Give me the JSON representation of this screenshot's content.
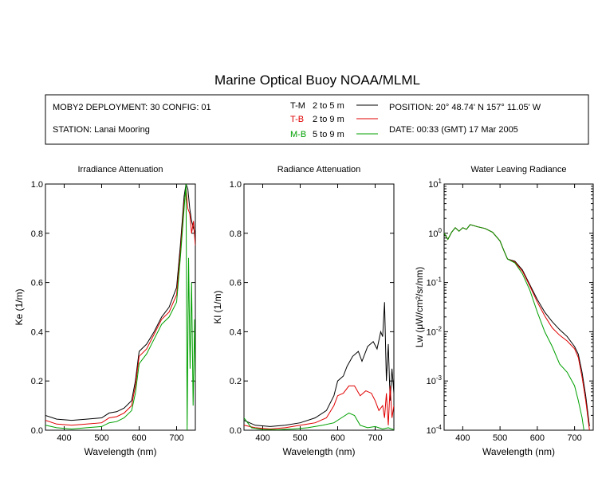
{
  "figure": {
    "title": "Marine Optical Buoy NOAA/MLML",
    "deployment": "MOBY2 DEPLOYMENT: 30 CONFIG: 01",
    "station": "STATION: Lanai Mooring",
    "position": "POSITION: 20° 48.74' N   157° 11.05' W",
    "date": "DATE: 00:33 (GMT) 17 Mar 2005",
    "legend": [
      {
        "code": "T-M",
        "range": "2 to 5  m",
        "color": "#000000"
      },
      {
        "code": "T-B",
        "range": "2 to 9  m",
        "color": "#e00000"
      },
      {
        "code": "M-B",
        "range": "5 to 9  m",
        "color": "#00a000"
      }
    ]
  },
  "chart_data": [
    {
      "type": "line",
      "title": "Irradiance Attenuation",
      "xlabel": "Wavelength (nm)",
      "ylabel": "Ke  (1/m)",
      "xlim": [
        350,
        750
      ],
      "ylim": [
        0,
        1
      ],
      "xticks": [
        400,
        500,
        600,
        700
      ],
      "xtick_labels": [
        "400",
        "500",
        "600",
        "700"
      ],
      "yticks": [
        0,
        0.2,
        0.4,
        0.6,
        0.8,
        1.0
      ],
      "ytick_labels": [
        "0.0",
        "0.2",
        "0.4",
        "0.6",
        "0.8",
        "1.0"
      ],
      "series": [
        {
          "name": "T-M",
          "color": "#000000",
          "points": [
            [
              350,
              0.06
            ],
            [
              380,
              0.045
            ],
            [
              420,
              0.04
            ],
            [
              460,
              0.045
            ],
            [
              500,
              0.05
            ],
            [
              520,
              0.07
            ],
            [
              540,
              0.075
            ],
            [
              560,
              0.09
            ],
            [
              580,
              0.12
            ],
            [
              590,
              0.2
            ],
            [
              600,
              0.32
            ],
            [
              620,
              0.35
            ],
            [
              640,
              0.4
            ],
            [
              660,
              0.46
            ],
            [
              680,
              0.5
            ],
            [
              700,
              0.58
            ],
            [
              710,
              0.75
            ],
            [
              720,
              0.95
            ],
            [
              725,
              1.0
            ],
            [
              730,
              0.98
            ],
            [
              735,
              0.9
            ],
            [
              740,
              0.85
            ],
            [
              745,
              0.82
            ],
            [
              750,
              0.8
            ]
          ]
        },
        {
          "name": "T-B",
          "color": "#e00000",
          "points": [
            [
              350,
              0.04
            ],
            [
              380,
              0.025
            ],
            [
              420,
              0.02
            ],
            [
              460,
              0.025
            ],
            [
              500,
              0.03
            ],
            [
              520,
              0.05
            ],
            [
              540,
              0.055
            ],
            [
              560,
              0.07
            ],
            [
              580,
              0.1
            ],
            [
              590,
              0.18
            ],
            [
              600,
              0.3
            ],
            [
              620,
              0.33
            ],
            [
              640,
              0.39
            ],
            [
              660,
              0.45
            ],
            [
              680,
              0.48
            ],
            [
              700,
              0.55
            ],
            [
              710,
              0.72
            ],
            [
              720,
              0.92
            ],
            [
              725,
              0.98
            ],
            [
              730,
              0.9
            ],
            [
              735,
              0.88
            ],
            [
              740,
              0.8
            ],
            [
              745,
              0.85
            ],
            [
              750,
              0.75
            ]
          ]
        },
        {
          "name": "M-B",
          "color": "#00a000",
          "points": [
            [
              350,
              0.02
            ],
            [
              380,
              0.01
            ],
            [
              420,
              0.005
            ],
            [
              460,
              0.01
            ],
            [
              500,
              0.015
            ],
            [
              520,
              0.03
            ],
            [
              540,
              0.035
            ],
            [
              560,
              0.05
            ],
            [
              580,
              0.08
            ],
            [
              590,
              0.15
            ],
            [
              600,
              0.27
            ],
            [
              620,
              0.31
            ],
            [
              640,
              0.37
            ],
            [
              660,
              0.43
            ],
            [
              680,
              0.46
            ],
            [
              700,
              0.52
            ],
            [
              710,
              0.7
            ],
            [
              720,
              0.9
            ],
            [
              725,
              1.0
            ],
            [
              728,
              0.0
            ],
            [
              732,
              0.7
            ],
            [
              736,
              0.25
            ],
            [
              740,
              0.6
            ],
            [
              744,
              0.1
            ],
            [
              748,
              0.45
            ],
            [
              750,
              0.2
            ]
          ]
        }
      ]
    },
    {
      "type": "line",
      "title": "Radiance Attenuation",
      "xlabel": "Wavelength (nm)",
      "ylabel": "Kl  (1/m)",
      "xlim": [
        350,
        750
      ],
      "ylim": [
        0,
        1
      ],
      "xticks": [
        400,
        500,
        600,
        700
      ],
      "xtick_labels": [
        "400",
        "500",
        "600",
        "700"
      ],
      "yticks": [
        0,
        0.2,
        0.4,
        0.6,
        0.8,
        1.0
      ],
      "ytick_labels": [
        "0.0",
        "0.2",
        "0.4",
        "0.6",
        "0.8",
        "1.0"
      ],
      "series": [
        {
          "name": "T-M",
          "color": "#000000",
          "points": [
            [
              350,
              0.04
            ],
            [
              380,
              0.02
            ],
            [
              420,
              0.015
            ],
            [
              460,
              0.02
            ],
            [
              500,
              0.03
            ],
            [
              540,
              0.05
            ],
            [
              570,
              0.08
            ],
            [
              590,
              0.14
            ],
            [
              600,
              0.2
            ],
            [
              615,
              0.22
            ],
            [
              625,
              0.26
            ],
            [
              640,
              0.3
            ],
            [
              655,
              0.32
            ],
            [
              665,
              0.28
            ],
            [
              680,
              0.34
            ],
            [
              695,
              0.36
            ],
            [
              705,
              0.33
            ],
            [
              715,
              0.4
            ],
            [
              720,
              0.38
            ],
            [
              725,
              0.52
            ],
            [
              730,
              0.2
            ],
            [
              735,
              0.35
            ],
            [
              740,
              0.12
            ],
            [
              745,
              0.25
            ],
            [
              750,
              0.15
            ]
          ]
        },
        {
          "name": "T-B",
          "color": "#e00000",
          "points": [
            [
              350,
              0.02
            ],
            [
              380,
              0.01
            ],
            [
              420,
              0.005
            ],
            [
              460,
              0.01
            ],
            [
              500,
              0.02
            ],
            [
              540,
              0.03
            ],
            [
              570,
              0.05
            ],
            [
              590,
              0.1
            ],
            [
              600,
              0.14
            ],
            [
              615,
              0.15
            ],
            [
              630,
              0.18
            ],
            [
              645,
              0.18
            ],
            [
              660,
              0.14
            ],
            [
              675,
              0.16
            ],
            [
              690,
              0.15
            ],
            [
              700,
              0.12
            ],
            [
              710,
              0.08
            ],
            [
              720,
              0.1
            ],
            [
              725,
              0.05
            ],
            [
              730,
              0.15
            ],
            [
              735,
              0.02
            ],
            [
              740,
              0.18
            ],
            [
              745,
              0.05
            ],
            [
              750,
              0.1
            ]
          ]
        },
        {
          "name": "M-B",
          "color": "#00a000",
          "points": [
            [
              350,
              0.05
            ],
            [
              370,
              0.01
            ],
            [
              400,
              0.003
            ],
            [
              440,
              0.002
            ],
            [
              480,
              0.005
            ],
            [
              520,
              0.01
            ],
            [
              560,
              0.02
            ],
            [
              590,
              0.03
            ],
            [
              610,
              0.05
            ],
            [
              630,
              0.07
            ],
            [
              645,
              0.06
            ],
            [
              660,
              0.02
            ],
            [
              680,
              0.01
            ],
            [
              700,
              0.015
            ],
            [
              720,
              0.005
            ],
            [
              735,
              0.01
            ],
            [
              750,
              0.002
            ]
          ]
        }
      ]
    },
    {
      "type": "line",
      "title": "Water Leaving Radiance",
      "xlabel": "Wavelength (nm)",
      "ylabel": "Lw  (μW/cm²/sr/nm)",
      "yscale": "log",
      "xlim": [
        350,
        750
      ],
      "ylim": [
        0.0001,
        10
      ],
      "xticks": [
        400,
        500,
        600,
        700
      ],
      "xtick_labels": [
        "400",
        "500",
        "600",
        "700"
      ],
      "yticks": [
        0.0001,
        0.001,
        0.01,
        0.1,
        1,
        10
      ],
      "ytick_labels": [
        {
          "base": "10",
          "exp": "-4"
        },
        {
          "base": "10",
          "exp": "-3"
        },
        {
          "base": "10",
          "exp": "-2"
        },
        {
          "base": "10",
          "exp": "-1"
        },
        {
          "base": "10",
          "exp": "0"
        },
        {
          "base": "10",
          "exp": "1"
        }
      ],
      "series": [
        {
          "name": "T-M",
          "color": "#000000",
          "points": [
            [
              350,
              1.0
            ],
            [
              360,
              0.75
            ],
            [
              370,
              1.05
            ],
            [
              380,
              1.3
            ],
            [
              390,
              1.1
            ],
            [
              400,
              1.3
            ],
            [
              410,
              1.2
            ],
            [
              420,
              1.5
            ],
            [
              440,
              1.35
            ],
            [
              460,
              1.25
            ],
            [
              480,
              1.05
            ],
            [
              500,
              0.7
            ],
            [
              510,
              0.45
            ],
            [
              520,
              0.3
            ],
            [
              540,
              0.27
            ],
            [
              560,
              0.18
            ],
            [
              580,
              0.09
            ],
            [
              600,
              0.045
            ],
            [
              620,
              0.025
            ],
            [
              640,
              0.016
            ],
            [
              660,
              0.011
            ],
            [
              680,
              0.008
            ],
            [
              700,
              0.005
            ],
            [
              710,
              0.0035
            ],
            [
              720,
              0.0015
            ],
            [
              730,
              0.0005
            ],
            [
              740,
              0.00012
            ]
          ]
        },
        {
          "name": "T-B",
          "color": "#e00000",
          "points": [
            [
              350,
              1.0
            ],
            [
              360,
              0.75
            ],
            [
              370,
              1.05
            ],
            [
              380,
              1.3
            ],
            [
              390,
              1.1
            ],
            [
              400,
              1.3
            ],
            [
              410,
              1.2
            ],
            [
              420,
              1.5
            ],
            [
              440,
              1.35
            ],
            [
              460,
              1.25
            ],
            [
              480,
              1.05
            ],
            [
              500,
              0.7
            ],
            [
              510,
              0.45
            ],
            [
              520,
              0.3
            ],
            [
              540,
              0.26
            ],
            [
              560,
              0.17
            ],
            [
              580,
              0.085
            ],
            [
              600,
              0.04
            ],
            [
              620,
              0.021
            ],
            [
              640,
              0.012
            ],
            [
              660,
              0.0085
            ],
            [
              680,
              0.0065
            ],
            [
              700,
              0.0045
            ],
            [
              710,
              0.003
            ],
            [
              720,
              0.0012
            ],
            [
              730,
              0.0004
            ],
            [
              740,
              0.0001
            ]
          ]
        },
        {
          "name": "M-B",
          "color": "#00a000",
          "points": [
            [
              350,
              1.0
            ],
            [
              360,
              0.75
            ],
            [
              370,
              1.05
            ],
            [
              380,
              1.3
            ],
            [
              390,
              1.1
            ],
            [
              400,
              1.3
            ],
            [
              410,
              1.2
            ],
            [
              420,
              1.5
            ],
            [
              440,
              1.35
            ],
            [
              460,
              1.25
            ],
            [
              480,
              1.05
            ],
            [
              500,
              0.7
            ],
            [
              510,
              0.45
            ],
            [
              520,
              0.3
            ],
            [
              540,
              0.25
            ],
            [
              560,
              0.15
            ],
            [
              580,
              0.07
            ],
            [
              600,
              0.025
            ],
            [
              620,
              0.01
            ],
            [
              640,
              0.005
            ],
            [
              660,
              0.0022
            ],
            [
              680,
              0.0015
            ],
            [
              700,
              0.0008
            ],
            [
              710,
              0.0004
            ],
            [
              720,
              0.00018
            ],
            [
              725,
              0.0001
            ]
          ]
        }
      ]
    }
  ]
}
